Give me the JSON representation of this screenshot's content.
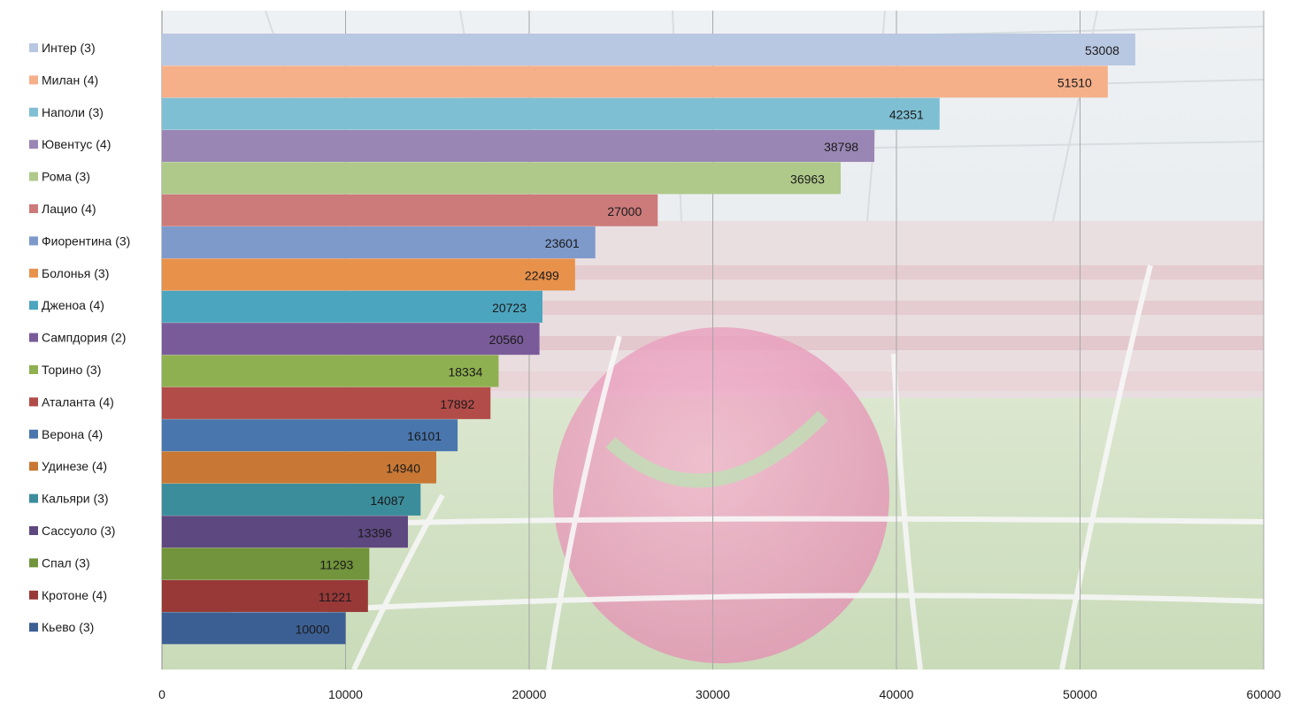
{
  "chart_data": {
    "type": "bar",
    "orientation": "horizontal",
    "categories": [
      "Интер (3)",
      "Милан (4)",
      "Наполи (3)",
      "Ювентус (4)",
      "Рома (3)",
      "Лацио (4)",
      "Фиорентина (3)",
      "Болонья (3)",
      "Дженоа (4)",
      "Сампдория (2)",
      "Торино (3)",
      "Аталанта (4)",
      "Верона (4)",
      "Удинезе (4)",
      "Кальяри (3)",
      "Сассуоло (3)",
      "Спал (3)",
      "Кротоне (4)",
      "Кьево (3)"
    ],
    "values": [
      53008,
      51510,
      42351,
      38798,
      36963,
      27000,
      23601,
      22499,
      20723,
      20560,
      18334,
      17892,
      16101,
      14940,
      14087,
      13396,
      11293,
      11221,
      10000
    ],
    "colors": [
      "#B8C7E2",
      "#F5B08A",
      "#7FBFD3",
      "#9A86B4",
      "#AFC98A",
      "#CC7A7A",
      "#7D9ACB",
      "#E8914B",
      "#4CA5BE",
      "#795B99",
      "#8FB050",
      "#B24C49",
      "#4A76AE",
      "#C87834",
      "#3C8D9C",
      "#5E4880",
      "#72943C",
      "#983938",
      "#3C5F93"
    ],
    "x_ticks": [
      0,
      10000,
      20000,
      30000,
      40000,
      50000,
      60000
    ],
    "xlim": [
      0,
      60000
    ],
    "grid": true,
    "legend_position": "left",
    "data_labels": true,
    "title": "",
    "xlabel": "",
    "ylabel": ""
  }
}
